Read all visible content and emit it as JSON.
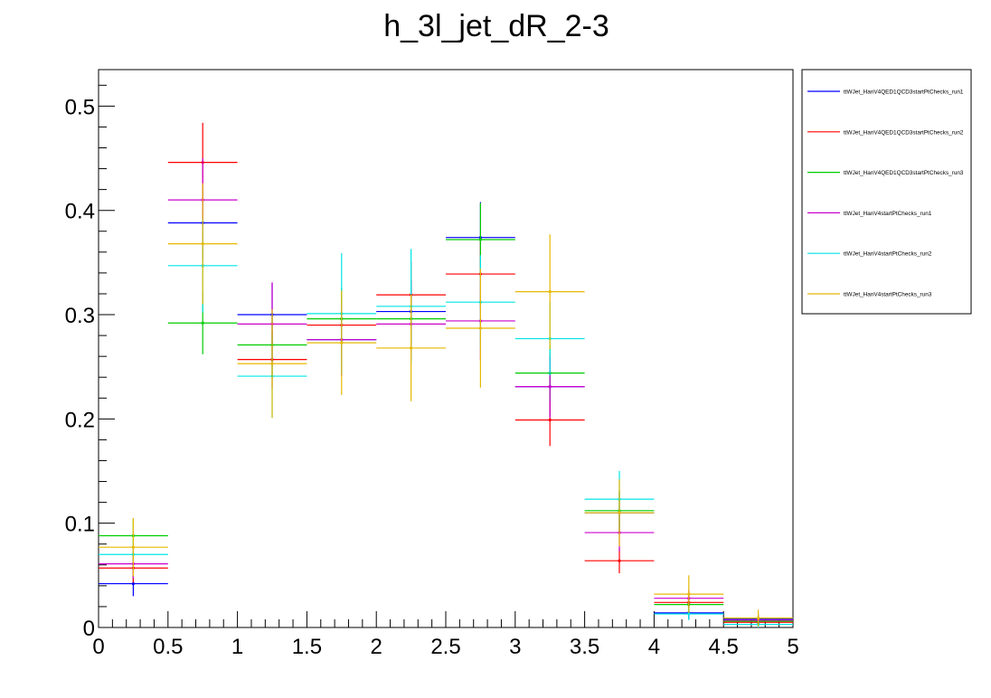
{
  "chart_data": {
    "type": "line",
    "title": "h_3l_jet_dR_2-3",
    "xlabel": "",
    "ylabel": "",
    "xlim": [
      0,
      5
    ],
    "ylim": [
      0,
      0.535
    ],
    "x_edges": [
      0,
      0.5,
      1,
      1.5,
      2,
      2.5,
      3,
      3.5,
      4,
      4.5,
      5
    ],
    "x_ticks": [
      "0",
      "0.5",
      "1",
      "1.5",
      "2",
      "2.5",
      "3",
      "3.5",
      "4",
      "4.5",
      "5"
    ],
    "y_ticks": [
      "0",
      "0.1",
      "0.2",
      "0.3",
      "0.4",
      "0.5"
    ],
    "grid": false,
    "legend_position": "right",
    "series": [
      {
        "name": "ttWJet_HanV4QED1QCD3startPtChecks_run1",
        "color": "#0000ff",
        "values": [
          0.042,
          0.388,
          0.3,
          0.276,
          0.303,
          0.374,
          0.231,
          0.11,
          0.014,
          0.008
        ],
        "errors": [
          0.012,
          0.036,
          0.03,
          0.028,
          0.03,
          0.034,
          0.028,
          0.02,
          0.006,
          0.005
        ]
      },
      {
        "name": "ttWJet_HanV4QED1QCD3startPtChecks_run2",
        "color": "#ff0000",
        "values": [
          0.057,
          0.446,
          0.257,
          0.29,
          0.319,
          0.339,
          0.199,
          0.064,
          0.024,
          0.005
        ],
        "errors": [
          0.014,
          0.038,
          0.028,
          0.03,
          0.032,
          0.034,
          0.025,
          0.012,
          0.007,
          0.004
        ]
      },
      {
        "name": "ttWJet_HanV4QED1QCD3startPtChecks_run3",
        "color": "#00cc00",
        "values": [
          0.088,
          0.292,
          0.271,
          0.296,
          0.296,
          0.372,
          0.244,
          0.112,
          0.022,
          0.006
        ],
        "errors": [
          0.016,
          0.03,
          0.029,
          0.03,
          0.03,
          0.035,
          0.027,
          0.02,
          0.007,
          0.004
        ]
      },
      {
        "name": "ttWJet_HanV4startPtChecks_run1",
        "color": "#cc00cc",
        "values": [
          0.061,
          0.41,
          0.291,
          0.276,
          0.291,
          0.294,
          0.231,
          0.091,
          0.028,
          0.007
        ],
        "errors": [
          0.014,
          0.04,
          0.04,
          0.035,
          0.035,
          0.038,
          0.03,
          0.018,
          0.008,
          0.004
        ]
      },
      {
        "name": "ttWJet_HanV4startPtChecks_run2",
        "color": "#00e5e5",
        "values": [
          0.07,
          0.347,
          0.241,
          0.301,
          0.308,
          0.312,
          0.277,
          0.123,
          0.013,
          0.003
        ],
        "errors": [
          0.015,
          0.045,
          0.04,
          0.058,
          0.055,
          0.045,
          0.035,
          0.027,
          0.006,
          0.003
        ]
      },
      {
        "name": "ttWJet_HanV4startPtChecks_run3",
        "color": "#e6b800",
        "values": [
          0.077,
          0.368,
          0.253,
          0.273,
          0.268,
          0.287,
          0.322,
          0.11,
          0.032,
          0.009
        ],
        "errors": [
          0.028,
          0.058,
          0.052,
          0.05,
          0.051,
          0.057,
          0.055,
          0.032,
          0.018,
          0.008
        ]
      }
    ]
  }
}
